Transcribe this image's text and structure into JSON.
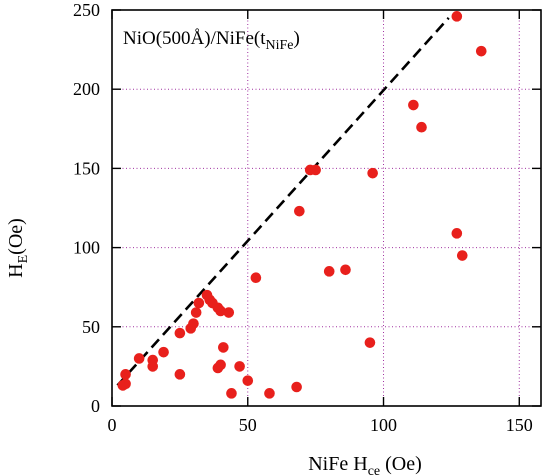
{
  "chart_data": {
    "type": "scatter",
    "xlabel": {
      "main": "NiFe H",
      "sub": "ce",
      "unit": " (Oe)"
    },
    "ylabel": {
      "main": "H",
      "sub": "E",
      "unit": "(Oe)"
    },
    "annotation": {
      "prefix": "NiO(500Å)/NiFe(t",
      "sub": "NiFe",
      "suffix": ")"
    },
    "xlim": [
      0,
      158
    ],
    "ylim": [
      0,
      250
    ],
    "xticks": [
      0,
      50,
      100,
      150
    ],
    "yticks": [
      0,
      50,
      100,
      150,
      200,
      250
    ],
    "xtick_labels": [
      "0",
      "50",
      "100",
      "150"
    ],
    "ytick_labels": [
      "0",
      "50",
      "100",
      "150",
      "200",
      "250"
    ],
    "grid_x": [
      50,
      100,
      150
    ],
    "grid_y": [
      50,
      100,
      150,
      200
    ],
    "grid": true,
    "marker_color": "#e8201c",
    "grid_color": "#a030a0",
    "reference_line": {
      "style": "dashed",
      "color": "#000000",
      "points": [
        [
          2,
          13
        ],
        [
          124,
          245
        ]
      ]
    },
    "points": [
      {
        "x": 4,
        "y": 13
      },
      {
        "x": 5,
        "y": 14
      },
      {
        "x": 5,
        "y": 20
      },
      {
        "x": 10,
        "y": 30
      },
      {
        "x": 15,
        "y": 25
      },
      {
        "x": 15,
        "y": 29
      },
      {
        "x": 19,
        "y": 34
      },
      {
        "x": 25,
        "y": 20
      },
      {
        "x": 25,
        "y": 46
      },
      {
        "x": 29,
        "y": 49
      },
      {
        "x": 30,
        "y": 52
      },
      {
        "x": 31,
        "y": 59
      },
      {
        "x": 32,
        "y": 65
      },
      {
        "x": 35,
        "y": 70
      },
      {
        "x": 36,
        "y": 67
      },
      {
        "x": 37,
        "y": 65
      },
      {
        "x": 39,
        "y": 62
      },
      {
        "x": 40,
        "y": 60
      },
      {
        "x": 43,
        "y": 59
      },
      {
        "x": 39,
        "y": 24
      },
      {
        "x": 40,
        "y": 26
      },
      {
        "x": 41,
        "y": 37
      },
      {
        "x": 44,
        "y": 8
      },
      {
        "x": 47,
        "y": 25
      },
      {
        "x": 50,
        "y": 16
      },
      {
        "x": 53,
        "y": 81
      },
      {
        "x": 58,
        "y": 8
      },
      {
        "x": 68,
        "y": 12
      },
      {
        "x": 69,
        "y": 123
      },
      {
        "x": 73,
        "y": 149
      },
      {
        "x": 75,
        "y": 149
      },
      {
        "x": 80,
        "y": 85
      },
      {
        "x": 86,
        "y": 86
      },
      {
        "x": 95,
        "y": 40
      },
      {
        "x": 96,
        "y": 147
      },
      {
        "x": 111,
        "y": 190
      },
      {
        "x": 114,
        "y": 176
      },
      {
        "x": 127,
        "y": 109
      },
      {
        "x": 127,
        "y": 246
      },
      {
        "x": 129,
        "y": 95
      },
      {
        "x": 136,
        "y": 224
      }
    ]
  }
}
